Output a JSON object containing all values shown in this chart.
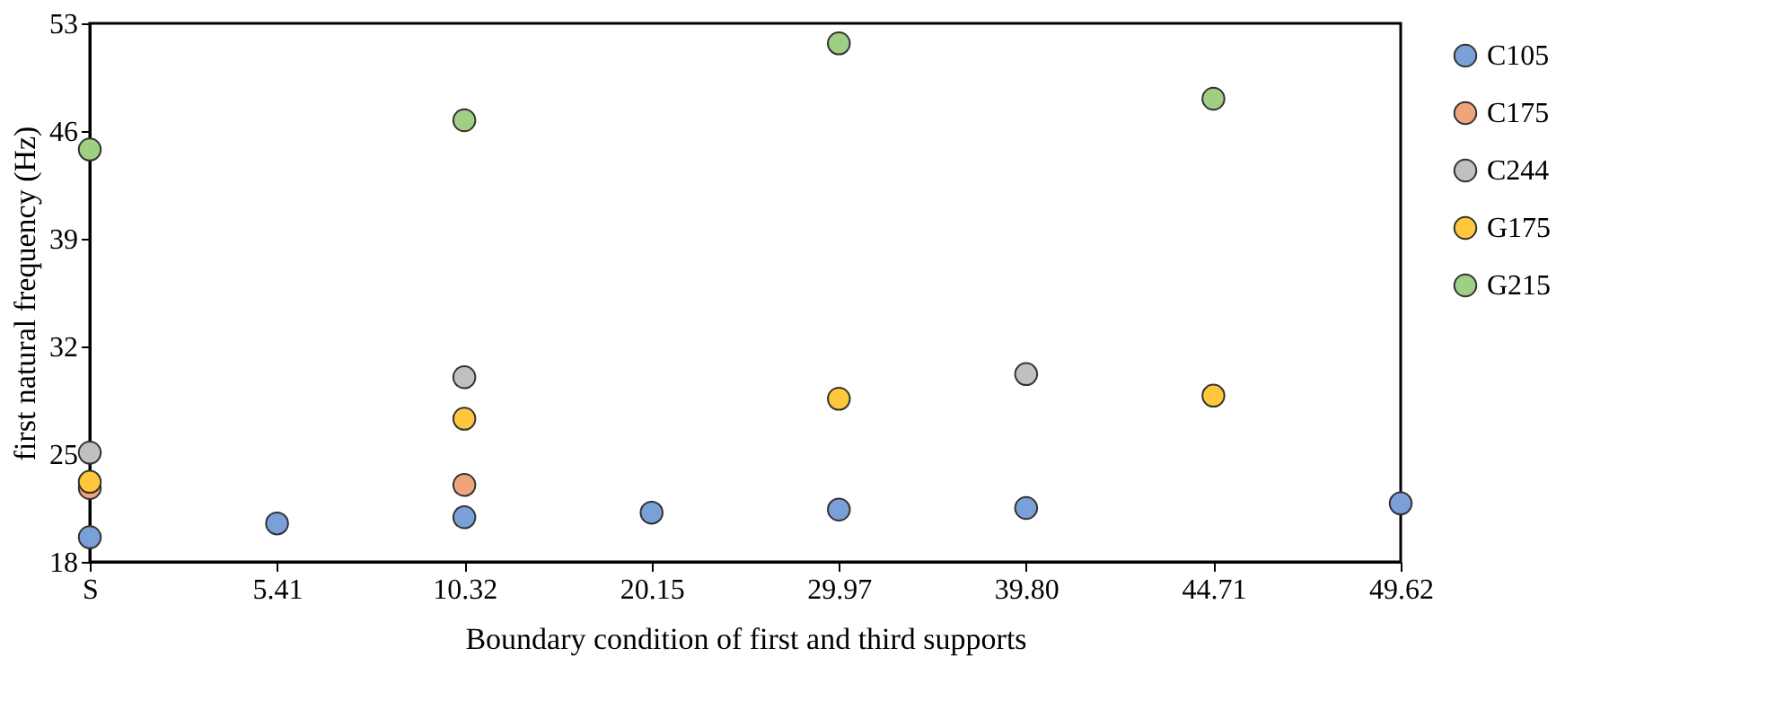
{
  "chart_data": {
    "type": "scatter",
    "xlabel": "Boundary condition of first and third supports",
    "ylabel": "first natural frequency  (Hz)",
    "categories": [
      "S",
      "5.41",
      "10.32",
      "20.15",
      "29.97",
      "39.80",
      "44.71",
      "49.62"
    ],
    "series": [
      {
        "name": "C105",
        "color": "#7aa0d8",
        "values": [
          19.6,
          20.5,
          20.9,
          21.2,
          21.4,
          21.5,
          null,
          21.8
        ]
      },
      {
        "name": "C175",
        "color": "#f0a47c",
        "values": [
          22.8,
          null,
          23.0,
          null,
          null,
          null,
          null,
          null
        ]
      },
      {
        "name": "C244",
        "color": "#c0c0c0",
        "values": [
          25.1,
          null,
          30.0,
          null,
          null,
          30.2,
          null,
          null
        ]
      },
      {
        "name": "G175",
        "color": "#ffc83c",
        "values": [
          23.2,
          null,
          27.3,
          null,
          28.6,
          null,
          28.8,
          null
        ]
      },
      {
        "name": "G215",
        "color": "#9fcf82",
        "values": [
          44.8,
          null,
          46.7,
          null,
          51.7,
          null,
          48.1,
          null
        ]
      }
    ],
    "ylim": [
      18,
      53
    ],
    "yticks": [
      18,
      25,
      32,
      39,
      46,
      53
    ],
    "grid": false,
    "legend": "right",
    "marker": "circle"
  }
}
